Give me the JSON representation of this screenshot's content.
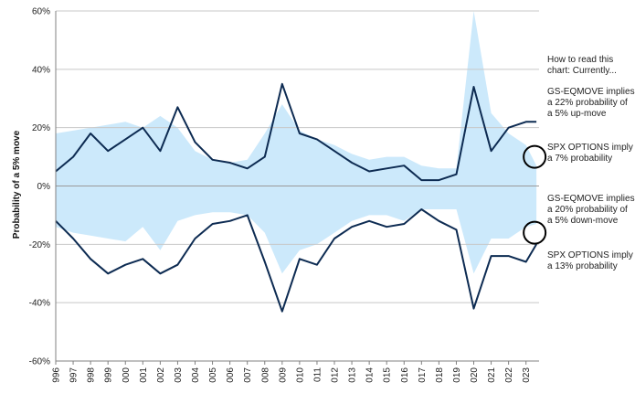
{
  "chart_data": {
    "type": "area",
    "ylabel": "Probability of a 5% move",
    "ylim": [
      -60,
      60
    ],
    "yticks": [
      "60%",
      "40%",
      "20%",
      "0%",
      "-20%",
      "-40%",
      "-60%"
    ],
    "xticks": [
      "996",
      "997",
      "998",
      "999",
      "000",
      "001",
      "002",
      "003",
      "004",
      "005",
      "006",
      "007",
      "008",
      "009",
      "010",
      "011",
      "012",
      "013",
      "014",
      "015",
      "016",
      "017",
      "018",
      "019",
      "020",
      "021",
      "022",
      "023"
    ],
    "x": [
      1996,
      1997,
      1998,
      1999,
      2000,
      2001,
      2002,
      2003,
      2004,
      2005,
      2006,
      2007,
      2008,
      2009,
      2010,
      2011,
      2012,
      2013,
      2014,
      2015,
      2016,
      2017,
      2018,
      2019,
      2020,
      2021,
      2022,
      2023,
      2023.6
    ],
    "series": [
      {
        "name": "SPX OPTIONS",
        "style": "shaded-area",
        "up": [
          18,
          19,
          20,
          21,
          22,
          20,
          24,
          20,
          12,
          9,
          8,
          9,
          18,
          28,
          19,
          16,
          14,
          11,
          9,
          10,
          10,
          7,
          6,
          6,
          60,
          25,
          18,
          14,
          7
        ],
        "down": [
          -14,
          -16,
          -17,
          -18,
          -19,
          -14,
          -22,
          -12,
          -10,
          -9,
          -9,
          -10,
          -16,
          -30,
          -22,
          -20,
          -16,
          -12,
          -10,
          -10,
          -12,
          -8,
          -8,
          -8,
          -30,
          -18,
          -18,
          -14,
          -13
        ]
      },
      {
        "name": "GS-EQMOVE",
        "style": "line",
        "up": [
          5,
          10,
          18,
          12,
          16,
          20,
          12,
          27,
          15,
          9,
          8,
          6,
          10,
          35,
          18,
          16,
          12,
          8,
          5,
          6,
          7,
          2,
          2,
          4,
          34,
          12,
          20,
          22,
          22
        ],
        "down": [
          -12,
          -18,
          -25,
          -30,
          -27,
          -25,
          -30,
          -27,
          -18,
          -13,
          -12,
          -10,
          -26,
          -43,
          -25,
          -27,
          -18,
          -14,
          -12,
          -14,
          -13,
          -8,
          -12,
          -15,
          -42,
          -24,
          -24,
          -26,
          -20
        ]
      }
    ],
    "colors": {
      "line": "#0d2b52",
      "area": "#cce9fb",
      "circle": "#000000"
    },
    "grid": "horizontal",
    "annotations": {
      "header": "How to read this chart: Currently...",
      "up_gs": "GS-EQMOVE implies a 22% probability of a 5% up-move",
      "up_spx": "SPX OPTIONS imply a 7% probability",
      "down_gs": "GS-EQMOVE implies a 20% probability of a 5% down-move",
      "down_spx": "SPX OPTIONS imply a 13% probability"
    }
  }
}
